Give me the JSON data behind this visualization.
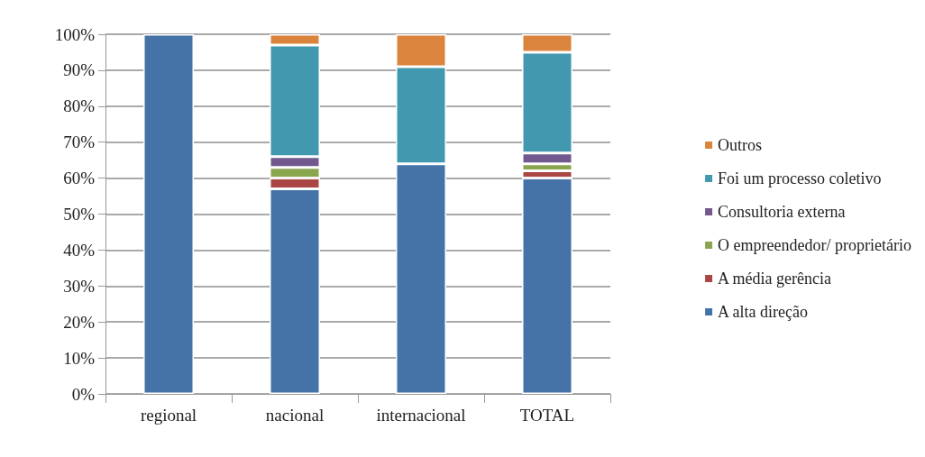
{
  "chart_data": {
    "type": "bar",
    "stacked": true,
    "categories": [
      "regional",
      "nacional",
      "internacional",
      "TOTAL"
    ],
    "series": [
      {
        "name": "A alta direção",
        "color": "#4572a7",
        "values": [
          100,
          57,
          64,
          60
        ]
      },
      {
        "name": "A média gerência",
        "color": "#aa4643",
        "values": [
          0,
          3,
          0,
          2
        ]
      },
      {
        "name": "O empreendedor/ proprietário",
        "color": "#89a54e",
        "values": [
          0,
          3,
          0,
          2
        ]
      },
      {
        "name": "Consultoria externa",
        "color": "#71588f",
        "values": [
          0,
          3,
          0,
          3
        ]
      },
      {
        "name": "Foi um processo coletivo",
        "color": "#4198af",
        "values": [
          0,
          31,
          27,
          28
        ]
      },
      {
        "name": "Outros",
        "color": "#db843d",
        "values": [
          0,
          3,
          9,
          5
        ]
      }
    ],
    "ylim": [
      0,
      100
    ],
    "yticks": [
      {
        "value": 0,
        "label": "0%"
      },
      {
        "value": 10,
        "label": "10%"
      },
      {
        "value": 20,
        "label": "20%"
      },
      {
        "value": 30,
        "label": "30%"
      },
      {
        "value": 40,
        "label": "40%"
      },
      {
        "value": 50,
        "label": "50%"
      },
      {
        "value": 60,
        "label": "60%"
      },
      {
        "value": 70,
        "label": "70%"
      },
      {
        "value": 80,
        "label": "80%"
      },
      {
        "value": 90,
        "label": "90%"
      },
      {
        "value": 100,
        "label": "100%"
      }
    ],
    "grid": "y",
    "legend": "right"
  }
}
